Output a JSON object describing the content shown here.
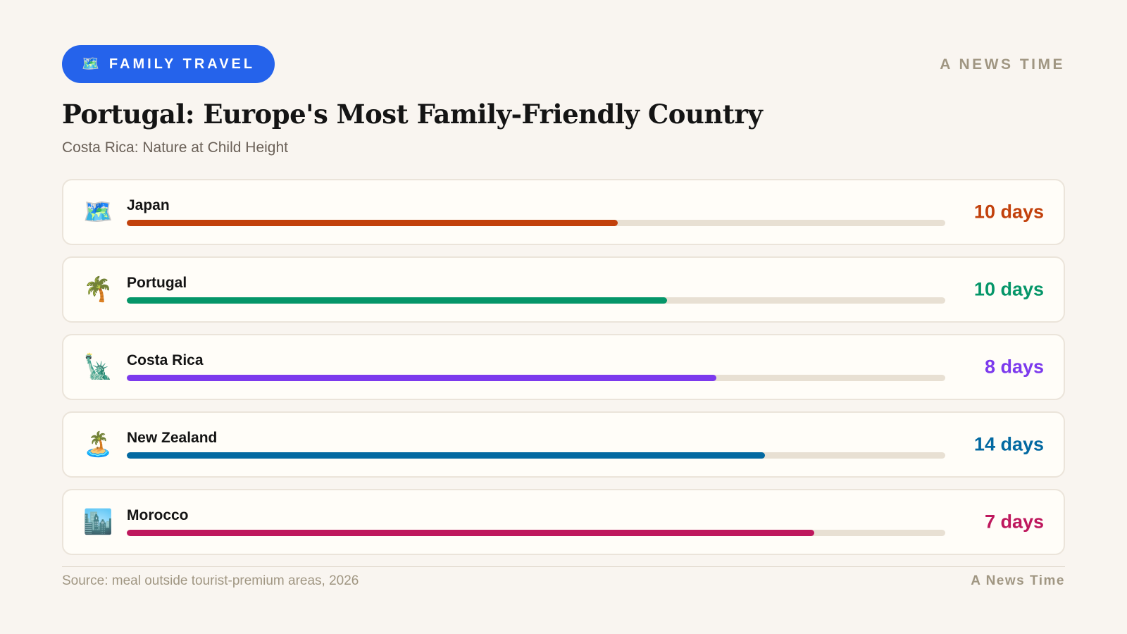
{
  "header": {
    "category_icon": "🗺️",
    "category_label": "FAMILY TRAVEL",
    "brand": "A NEWS TIME",
    "accent_color": "#2563eb"
  },
  "title": "Portugal: Europe's Most Family-Friendly Country",
  "subtitle": "Costa Rica: Nature at Child Height",
  "chart_data": {
    "type": "bar",
    "orientation": "horizontal",
    "categories": [
      "Japan",
      "Portugal",
      "Costa Rica",
      "New Zealand",
      "Morocco"
    ],
    "value_labels": [
      "10 days",
      "10 days",
      "8 days",
      "14 days",
      "7 days"
    ],
    "bar_fill_fractions": [
      0.6,
      0.66,
      0.72,
      0.78,
      0.84
    ],
    "icons": [
      "🗺️",
      "🌴",
      "🗽",
      "🏝️",
      "🏙️"
    ],
    "colors": [
      "#c2410c",
      "#059669",
      "#7c3aed",
      "#0369a1",
      "#be185d"
    ],
    "track_color": "#e8e0d3"
  },
  "footer": {
    "source": "Source: meal outside tourist-premium areas, 2026",
    "brand": "A News Time"
  }
}
